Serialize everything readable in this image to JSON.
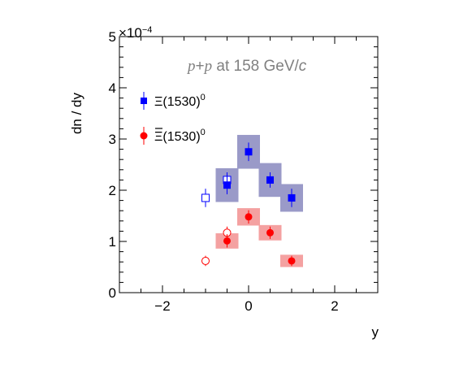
{
  "chart_data": {
    "type": "scatter",
    "xlabel": "y",
    "ylabel": "dn / dy",
    "y_exponent_label": "×10",
    "y_exponent_power": "−4",
    "xlim": [
      -3,
      3
    ],
    "ylim": [
      0,
      5
    ],
    "x_ticks": [
      -2,
      0,
      2
    ],
    "y_ticks": [
      0,
      1,
      2,
      3,
      4,
      5
    ],
    "grid": false,
    "legend_position": "top-left",
    "annotation": {
      "italic_a": "p",
      "plus": "+",
      "italic_b": "p",
      "rest": " at 158 GeV/",
      "italic_c": "c"
    },
    "series": [
      {
        "name": "Ξ(1530)",
        "name_superscript": "0",
        "color": "#0000ff",
        "band_color": "#9a9ac8",
        "marker": "square",
        "measured": [
          {
            "x": -0.5,
            "y": 2.1,
            "err": 0.18,
            "sys": 0.33
          },
          {
            "x": 0.0,
            "y": 2.75,
            "err": 0.18,
            "sys": 0.33
          },
          {
            "x": 0.5,
            "y": 2.2,
            "err": 0.15,
            "sys": 0.33
          },
          {
            "x": 1.0,
            "y": 1.85,
            "err": 0.18,
            "sys": 0.27
          }
        ],
        "reflected": [
          {
            "x": -1.0,
            "y": 1.85,
            "err": 0.18
          },
          {
            "x": -0.5,
            "y": 2.2,
            "err": 0.15
          }
        ]
      },
      {
        "name": "Ξ(1530)",
        "name_superscript": "0",
        "name_overline": true,
        "color": "#ff0000",
        "band_color": "#f4a1a1",
        "marker": "circle",
        "measured": [
          {
            "x": -0.5,
            "y": 1.01,
            "err": 0.13,
            "sys": 0.15
          },
          {
            "x": 0.0,
            "y": 1.48,
            "err": 0.13,
            "sys": 0.17
          },
          {
            "x": 0.5,
            "y": 1.17,
            "err": 0.12,
            "sys": 0.15
          },
          {
            "x": 1.0,
            "y": 0.62,
            "err": 0.1,
            "sys": 0.12
          }
        ],
        "reflected": [
          {
            "x": -1.0,
            "y": 0.62,
            "err": 0.1
          },
          {
            "x": -0.5,
            "y": 1.17,
            "err": 0.12
          }
        ]
      }
    ]
  }
}
